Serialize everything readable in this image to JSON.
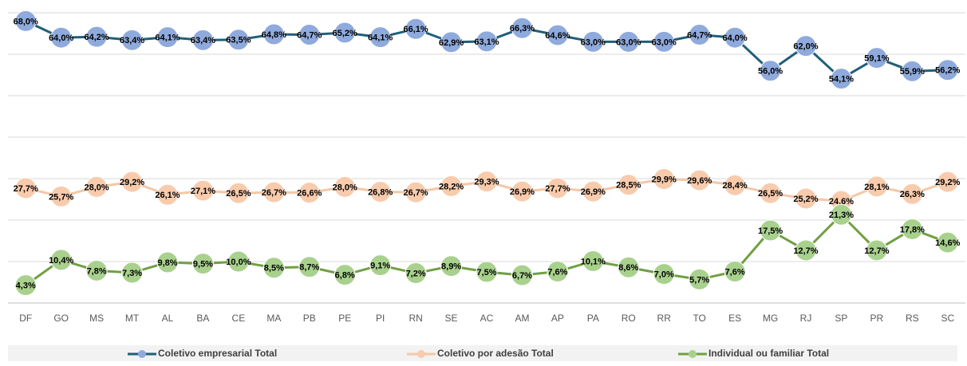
{
  "chart_data": {
    "type": "line",
    "categories": [
      "DF",
      "GO",
      "MS",
      "MT",
      "AL",
      "BA",
      "CE",
      "MA",
      "PB",
      "PE",
      "PI",
      "RN",
      "SE",
      "AC",
      "AM",
      "AP",
      "PA",
      "RO",
      "RR",
      "TO",
      "ES",
      "MG",
      "RJ",
      "SP",
      "PR",
      "RS",
      "SC"
    ],
    "series": [
      {
        "name": "Coletivo empresarial Total",
        "color": "#1f5f7a",
        "marker_color": "#8faadc",
        "values": [
          68.0,
          64.0,
          64.2,
          63.4,
          64.1,
          63.4,
          63.5,
          64.8,
          64.7,
          65.2,
          64.1,
          66.1,
          62.9,
          63.1,
          66.3,
          64.6,
          63.0,
          63.0,
          63.0,
          64.7,
          64.0,
          56.0,
          62.0,
          54.1,
          59.1,
          55.9,
          56.2
        ],
        "value_labels": [
          "68,0%",
          "64,0%",
          "64,2%",
          "63,4%",
          "64,1%",
          "63,4%",
          "63,5%",
          "64,8%",
          "64,7%",
          "65,2%",
          "64,1%",
          "66,1%",
          "62,9%",
          "63,1%",
          "66,3%",
          "64,6%",
          "63,0%",
          "63,0%",
          "63,0%",
          "64,7%",
          "64,0%",
          "56,0%",
          "62,0%",
          "54,1%",
          "59,1%",
          "55,9%",
          "56,2%"
        ]
      },
      {
        "name": "Coletivo por adesão Total",
        "color": "#f4c7a6",
        "marker_color": "#f8cbad",
        "values": [
          27.7,
          25.7,
          28.0,
          29.2,
          26.1,
          27.1,
          26.5,
          26.7,
          26.6,
          28.0,
          26.8,
          26.7,
          28.2,
          29.3,
          26.9,
          27.7,
          26.9,
          28.5,
          29.9,
          29.6,
          28.4,
          26.5,
          25.2,
          24.6,
          28.1,
          26.3,
          29.2
        ],
        "value_labels": [
          "27,7%",
          "25,7%",
          "28,0%",
          "29,2%",
          "26,1%",
          "27,1%",
          "26,5%",
          "26,7%",
          "26,6%",
          "28,0%",
          "26,8%",
          "26,7%",
          "28,2%",
          "29,3%",
          "26,9%",
          "27,7%",
          "26,9%",
          "28,5%",
          "29,9%",
          "29,6%",
          "28,4%",
          "26,5%",
          "25,2%",
          "24,6%",
          "28,1%",
          "26,3%",
          "29,2%"
        ]
      },
      {
        "name": "Individual ou familiar Total",
        "color": "#70a041",
        "marker_color": "#a9d18e",
        "values": [
          4.3,
          10.4,
          7.8,
          7.3,
          9.8,
          9.5,
          10.0,
          8.5,
          8.7,
          6.8,
          9.1,
          7.2,
          8.9,
          7.5,
          6.7,
          7.6,
          10.1,
          8.6,
          7.0,
          5.7,
          7.6,
          17.5,
          12.7,
          21.3,
          12.7,
          17.8,
          14.6
        ],
        "value_labels": [
          "4,3%",
          "10,4%",
          "7,8%",
          "7,3%",
          "9,8%",
          "9,5%",
          "10,0%",
          "8,5%",
          "8,7%",
          "6,8%",
          "9,1%",
          "7,2%",
          "8,9%",
          "7,5%",
          "6,7%",
          "7,6%",
          "10,1%",
          "8,6%",
          "7,0%",
          "5,7%",
          "7,6%",
          "17,5%",
          "12,7%",
          "21,3%",
          "12,7%",
          "17,8%",
          "14,6%"
        ]
      }
    ],
    "ylim": [
      0,
      70
    ],
    "yticks": [
      0,
      10,
      20,
      30,
      40,
      50,
      60,
      70
    ],
    "grid": true,
    "legend": "bottom"
  }
}
